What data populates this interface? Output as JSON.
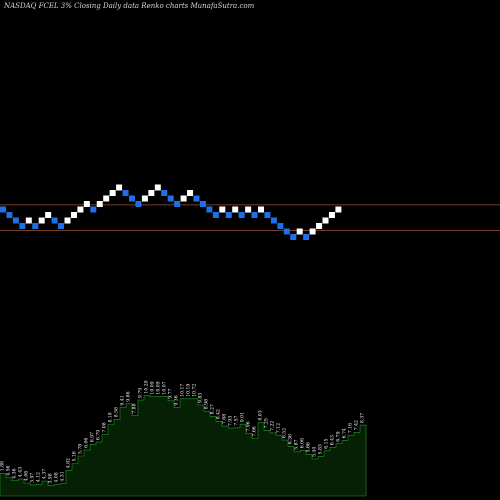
{
  "chart_data": {
    "type": "renko",
    "title": "NASDAQ FCEL  3%  Closing Daily data  Renko  charts MunafaSutra.com",
    "colors": {
      "background": "#000000",
      "up_brick": "#ffffff",
      "down_brick": "#1e6fe8",
      "reference_line": "#a0522d",
      "volume_fill": "#062006",
      "volume_outline": "#1f9a1f",
      "volume_label": "#ffffff"
    },
    "reference_levels": [
      1,
      4
    ],
    "bricks": [
      {
        "dir": "down",
        "level": 0
      },
      {
        "dir": "down",
        "level": -1
      },
      {
        "dir": "down",
        "level": -2
      },
      {
        "dir": "down",
        "level": -3
      },
      {
        "dir": "up",
        "level": -2
      },
      {
        "dir": "down",
        "level": -3
      },
      {
        "dir": "up",
        "level": -2
      },
      {
        "dir": "up",
        "level": -1
      },
      {
        "dir": "down",
        "level": -2
      },
      {
        "dir": "down",
        "level": -3
      },
      {
        "dir": "up",
        "level": -2
      },
      {
        "dir": "up",
        "level": -1
      },
      {
        "dir": "up",
        "level": 0
      },
      {
        "dir": "up",
        "level": 1
      },
      {
        "dir": "down",
        "level": 0
      },
      {
        "dir": "up",
        "level": 1
      },
      {
        "dir": "up",
        "level": 2
      },
      {
        "dir": "up",
        "level": 3
      },
      {
        "dir": "up",
        "level": 4
      },
      {
        "dir": "down",
        "level": 3
      },
      {
        "dir": "down",
        "level": 2
      },
      {
        "dir": "down",
        "level": 1
      },
      {
        "dir": "up",
        "level": 2
      },
      {
        "dir": "up",
        "level": 3
      },
      {
        "dir": "up",
        "level": 4
      },
      {
        "dir": "down",
        "level": 3
      },
      {
        "dir": "down",
        "level": 2
      },
      {
        "dir": "down",
        "level": 1
      },
      {
        "dir": "up",
        "level": 2
      },
      {
        "dir": "up",
        "level": 3
      },
      {
        "dir": "down",
        "level": 2
      },
      {
        "dir": "down",
        "level": 1
      },
      {
        "dir": "down",
        "level": 0
      },
      {
        "dir": "down",
        "level": -1
      },
      {
        "dir": "up",
        "level": 0
      },
      {
        "dir": "down",
        "level": -1
      },
      {
        "dir": "up",
        "level": 0
      },
      {
        "dir": "down",
        "level": -1
      },
      {
        "dir": "up",
        "level": 0
      },
      {
        "dir": "down",
        "level": -1
      },
      {
        "dir": "up",
        "level": 0
      },
      {
        "dir": "down",
        "level": -1
      },
      {
        "dir": "down",
        "level": -2
      },
      {
        "dir": "down",
        "level": -3
      },
      {
        "dir": "down",
        "level": -4
      },
      {
        "dir": "down",
        "level": -5
      },
      {
        "dir": "up",
        "level": -4
      },
      {
        "dir": "down",
        "level": -5
      },
      {
        "dir": "up",
        "level": -4
      },
      {
        "dir": "up",
        "level": -3
      },
      {
        "dir": "up",
        "level": -2
      },
      {
        "dir": "up",
        "level": -1
      },
      {
        "dir": "up",
        "level": 0
      }
    ],
    "volume_series": [
      {
        "value": 7.0,
        "label": "1.88"
      },
      {
        "value": 5.6,
        "label": "4.56"
      },
      {
        "value": 4.7,
        "label": "4.36"
      },
      {
        "value": 5.2,
        "label": "4.43"
      },
      {
        "value": 4.0,
        "label": "4.06"
      },
      {
        "value": 3.4,
        "label": "3.97"
      },
      {
        "value": 3.6,
        "label": "4.12"
      },
      {
        "value": 4.6,
        "label": "4.37"
      },
      {
        "value": 3.2,
        "label": "3.98"
      },
      {
        "value": 3.5,
        "label": "4.08"
      },
      {
        "value": 3.8,
        "label": "4.31"
      },
      {
        "value": 7.9,
        "label": "4.82"
      },
      {
        "value": 10.0,
        "label": "5.16"
      },
      {
        "value": 12.3,
        "label": "5.78"
      },
      {
        "value": 14.2,
        "label": "6.06"
      },
      {
        "value": 15.9,
        "label": "6.97"
      },
      {
        "value": 16.6,
        "label": "6.79"
      },
      {
        "value": 18.9,
        "label": "7.08"
      },
      {
        "value": 22.0,
        "label": "8.18"
      },
      {
        "value": 23.6,
        "label": "8.58"
      },
      {
        "value": 27.2,
        "label": "9.41"
      },
      {
        "value": 28.4,
        "label": "9.86"
      },
      {
        "value": 24.7,
        "label": "7.88"
      },
      {
        "value": 29.5,
        "label": "9.79"
      },
      {
        "value": 30.9,
        "label": "10.29"
      },
      {
        "value": 30.6,
        "label": "10.09"
      },
      {
        "value": 30.6,
        "label": "10.09"
      },
      {
        "value": 30.6,
        "label": "10.07"
      },
      {
        "value": 29.3,
        "label": "9.77"
      },
      {
        "value": 27.2,
        "label": "9.36"
      },
      {
        "value": 29.9,
        "label": "10.17"
      },
      {
        "value": 29.9,
        "label": "10.19"
      },
      {
        "value": 29.9,
        "label": "10.72"
      },
      {
        "value": 28.0,
        "label": "9.83"
      },
      {
        "value": 26.1,
        "label": "8.98"
      },
      {
        "value": 24.5,
        "label": "8.27"
      },
      {
        "value": 23.0,
        "label": "8.42"
      },
      {
        "value": 21.5,
        "label": "7.68"
      },
      {
        "value": 20.9,
        "label": "7.93"
      },
      {
        "value": 21.0,
        "label": "7.57"
      },
      {
        "value": 22.1,
        "label": "9.01"
      },
      {
        "value": 19.2,
        "label": "7.96"
      },
      {
        "value": 17.7,
        "label": "7.66"
      },
      {
        "value": 22.6,
        "label": "8.03"
      },
      {
        "value": 20.2,
        "label": "7.25"
      },
      {
        "value": 19.4,
        "label": "7.22"
      },
      {
        "value": 18.7,
        "label": "7.12"
      },
      {
        "value": 17.2,
        "label": "6.52"
      },
      {
        "value": 15.3,
        "label": "6.36"
      },
      {
        "value": 13.6,
        "label": "5.87"
      },
      {
        "value": 14.1,
        "label": "6.06"
      },
      {
        "value": 12.8,
        "label": "5.66"
      },
      {
        "value": 11.4,
        "label": "5.44"
      },
      {
        "value": 12.2,
        "label": "5.83"
      },
      {
        "value": 13.9,
        "label": "6.15"
      },
      {
        "value": 15.0,
        "label": "6.43"
      },
      {
        "value": 16.1,
        "label": "6.79"
      },
      {
        "value": 17.1,
        "label": "6.74"
      },
      {
        "value": 18.7,
        "label": "7.16"
      },
      {
        "value": 19.6,
        "label": "7.42"
      },
      {
        "value": 21.8,
        "label": "8.37"
      }
    ]
  }
}
